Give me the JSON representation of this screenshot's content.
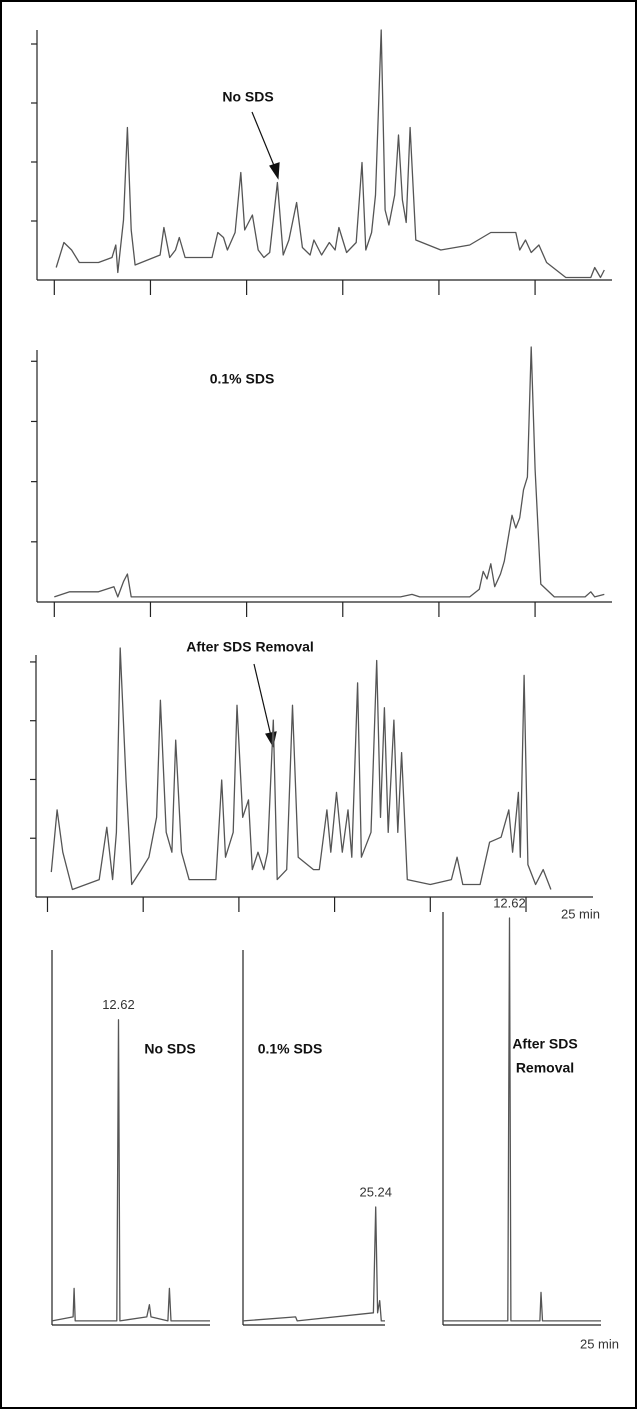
{
  "chart_data": [
    {
      "type": "line",
      "annotation": "No SDS",
      "x": [
        0.1,
        0.5,
        0.9,
        1.3,
        2.3,
        3.0,
        3.2,
        3.3,
        3.6,
        3.8,
        4.0,
        4.2,
        5.5,
        5.7,
        6.0,
        6.3,
        6.5,
        6.8,
        8.2,
        8.5,
        8.8,
        9.0,
        9.4,
        9.7,
        9.9,
        10.3,
        10.6,
        10.9,
        11.2,
        11.6,
        11.9,
        12.2,
        12.6,
        12.9,
        13.3,
        13.5,
        13.9,
        14.3,
        14.6,
        14.8,
        15.2,
        15.7,
        16.0,
        16.2,
        16.5,
        16.7,
        17.0,
        17.2,
        17.4,
        17.7,
        17.9,
        18.1,
        18.3,
        18.5,
        18.8,
        20.1,
        21.6,
        22.7,
        24.0,
        24.2,
        24.5,
        24.8,
        25.2,
        25.6,
        26.6,
        27.9,
        28.1,
        28.4,
        28.6
      ],
      "values": [
        5,
        15,
        12,
        7,
        7,
        9,
        14,
        3,
        24,
        61,
        20,
        6,
        10,
        21,
        9,
        12,
        17,
        9,
        9,
        19,
        17,
        12,
        19,
        43,
        20,
        26,
        12,
        9,
        11,
        39,
        10,
        16,
        31,
        13,
        10,
        16,
        10,
        15,
        12,
        21,
        11,
        15,
        47,
        12,
        19,
        34,
        100,
        28,
        22,
        34,
        58,
        32,
        23,
        61,
        16,
        12,
        14,
        19,
        19,
        12,
        16,
        11,
        14,
        7,
        1,
        1,
        5,
        1,
        4
      ],
      "xlim": [
        -0.9,
        29.0
      ],
      "ylim": [
        0,
        100
      ],
      "xticks": [
        0,
        5,
        10,
        15,
        20,
        25
      ],
      "yticks": [
        23.6,
        47.2,
        70.8,
        94.4
      ]
    },
    {
      "type": "line",
      "annotation": "0.1% SDS",
      "x": [
        0,
        0.8,
        2.3,
        3.1,
        3.3,
        3.6,
        3.8,
        4.0,
        4.9,
        10.2,
        18.0,
        18.6,
        19.0,
        21.6,
        22.1,
        22.3,
        22.5,
        22.7,
        22.9,
        23.2,
        23.4,
        23.8,
        24.0,
        24.2,
        24.4,
        24.6,
        24.8,
        25.0,
        25.3,
        26.0,
        27.6,
        27.9,
        28.1,
        28.6
      ],
      "values": [
        2,
        4,
        4,
        6,
        2,
        8,
        11,
        2,
        2,
        2,
        2,
        3,
        2,
        2,
        5,
        12,
        9,
        15,
        6,
        11,
        16,
        34,
        29,
        33,
        44,
        49,
        100,
        52,
        7,
        2,
        2,
        4,
        2,
        3
      ],
      "xlim": [
        -0.9,
        29.0
      ],
      "ylim": [
        0,
        100
      ],
      "xticks": [
        0,
        5,
        10,
        15,
        20,
        25
      ],
      "yticks": [
        23.6,
        47.2,
        70.8,
        94.4
      ]
    },
    {
      "type": "line",
      "annotation": "After SDS Removal",
      "xlabel": "25 min",
      "x": [
        0.2,
        0.5,
        0.8,
        1.3,
        2.7,
        3.1,
        3.4,
        3.6,
        3.8,
        4.1,
        4.4,
        4.9,
        5.3,
        5.7,
        5.9,
        6.2,
        6.5,
        6.7,
        7.0,
        7.4,
        8.8,
        9.1,
        9.3,
        9.7,
        9.9,
        10.2,
        10.5,
        10.7,
        11.0,
        11.3,
        11.5,
        11.8,
        12.0,
        12.5,
        12.8,
        13.1,
        13.9,
        14.2,
        14.6,
        14.8,
        15.1,
        15.4,
        15.7,
        15.9,
        16.2,
        16.4,
        16.9,
        17.2,
        17.4,
        17.6,
        17.8,
        18.1,
        18.3,
        18.5,
        18.8,
        20.0,
        21.1,
        21.4,
        21.7,
        22.6,
        23.1,
        23.7,
        24.1,
        24.3,
        24.6,
        24.7,
        24.9,
        25.1,
        25.5,
        25.9,
        26.3
      ],
      "values": [
        10,
        35,
        18,
        3,
        7,
        28,
        7,
        26,
        100,
        47,
        5,
        11,
        16,
        32,
        79,
        26,
        18,
        63,
        18,
        7,
        7,
        47,
        16,
        26,
        77,
        32,
        39,
        11,
        18,
        11,
        18,
        71,
        7,
        11,
        77,
        16,
        11,
        11,
        35,
        18,
        42,
        18,
        35,
        16,
        86,
        16,
        26,
        95,
        32,
        76,
        26,
        71,
        26,
        58,
        7,
        5,
        7,
        16,
        5,
        5,
        22,
        24,
        35,
        18,
        42,
        16,
        89,
        13,
        5,
        11,
        3
      ],
      "xlim": [
        -0.6,
        28.5
      ],
      "ylim": [
        0,
        100
      ],
      "xticks": [
        0,
        5,
        10,
        15,
        20,
        25
      ],
      "yticks": [
        23.6,
        47.2,
        70.8,
        94.4
      ]
    },
    {
      "type": "line",
      "annotation": "No SDS",
      "peak_label": "12.62",
      "x": [
        0,
        4,
        4.2,
        4.4,
        12.3,
        12.62,
        12.9,
        18,
        18.5,
        18.8,
        22,
        22.3,
        22.6,
        30
      ],
      "values": [
        1,
        2,
        9,
        1,
        1,
        75,
        1,
        2,
        5,
        2,
        1,
        9,
        1,
        1
      ],
      "xlim": [
        0,
        30
      ],
      "ylim": [
        0,
        100
      ]
    },
    {
      "type": "line",
      "annotation": "0.1% SDS",
      "peak_label": "25.24",
      "x": [
        0,
        10,
        10.3,
        24.8,
        25.24,
        25.6,
        26,
        26.3,
        27
      ],
      "values": [
        1,
        2,
        1,
        3,
        29,
        3,
        6,
        1,
        1
      ],
      "xlim": [
        0,
        27
      ],
      "ylim": [
        0,
        100
      ]
    },
    {
      "type": "line",
      "annotation": [
        "After SDS",
        "Removal"
      ],
      "peak_label": "12.62",
      "xlabel": "25 min",
      "x": [
        0,
        12.3,
        12.62,
        12.9,
        18.4,
        18.6,
        18.9,
        30
      ],
      "values": [
        1,
        1,
        100,
        1,
        1,
        8,
        1,
        1
      ],
      "xlim": [
        0,
        30
      ],
      "ylim": [
        0,
        100
      ]
    }
  ]
}
